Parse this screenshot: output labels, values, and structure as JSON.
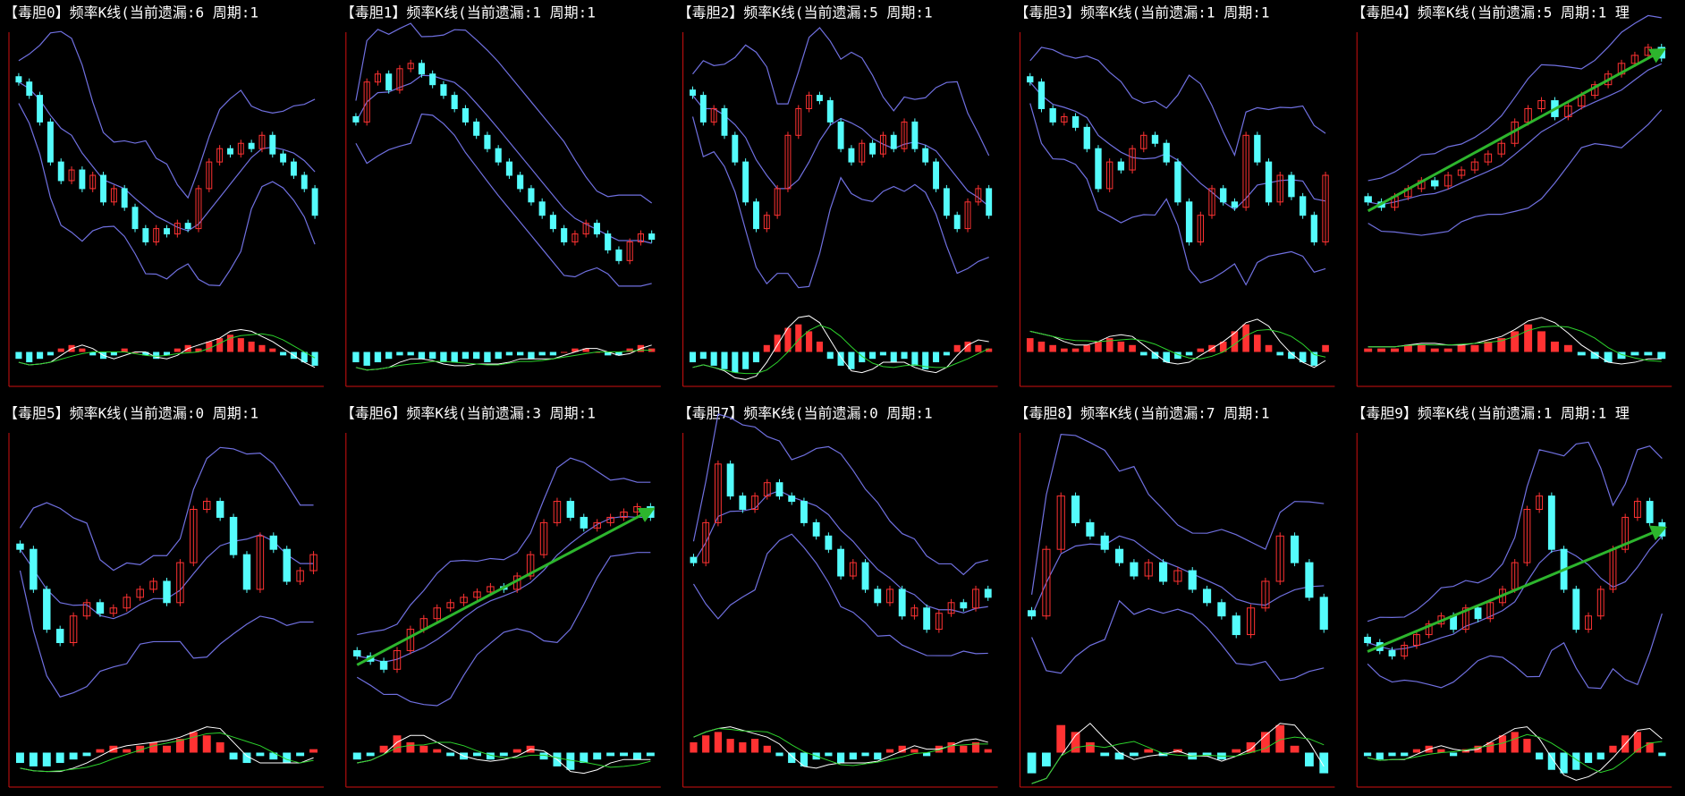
{
  "panels": [
    {
      "title": "【毒胆0】频率K线(当前遗漏:6 周期:1",
      "arrow": false,
      "price": [
        85,
        80,
        70,
        55,
        48,
        52,
        45,
        50,
        40,
        45,
        38,
        30,
        25,
        30,
        28,
        32,
        30,
        45,
        55,
        60,
        58,
        62,
        60,
        65,
        58,
        55,
        50,
        45,
        35
      ],
      "macd": [
        -2,
        -3,
        -2,
        -1,
        1,
        2,
        1,
        -1,
        -2,
        -1,
        1,
        0,
        -1,
        -2,
        -1,
        1,
        2,
        1,
        3,
        4,
        5,
        4,
        3,
        2,
        1,
        -1,
        -2,
        -3,
        -4
      ]
    },
    {
      "title": "【毒胆1】频率K线(当前遗漏:1 周期:1",
      "arrow": false,
      "price": [
        70,
        85,
        88,
        82,
        90,
        92,
        88,
        84,
        80,
        75,
        70,
        65,
        60,
        55,
        50,
        45,
        40,
        35,
        30,
        25,
        28,
        32,
        28,
        22,
        18,
        25,
        28,
        26
      ],
      "macd": [
        -3,
        -4,
        -3,
        -2,
        -1,
        -1,
        -2,
        -2,
        -3,
        -3,
        -2,
        -2,
        -3,
        -2,
        -1,
        -1,
        -2,
        -1,
        -1,
        0,
        1,
        1,
        0,
        -1,
        -1,
        1,
        2,
        1
      ]
    },
    {
      "title": "【毒胆2】频率K线(当前遗漏:5 周期:1",
      "arrow": false,
      "price": [
        80,
        70,
        75,
        65,
        55,
        40,
        30,
        35,
        45,
        65,
        75,
        80,
        78,
        70,
        60,
        55,
        62,
        58,
        65,
        60,
        70,
        60,
        55,
        45,
        35,
        30,
        40,
        45,
        35
      ],
      "macd": [
        -3,
        -2,
        -4,
        -5,
        -6,
        -5,
        -3,
        2,
        5,
        7,
        8,
        6,
        3,
        -2,
        -4,
        -5,
        -3,
        -2,
        -1,
        -3,
        -2,
        -4,
        -5,
        -3,
        -1,
        2,
        3,
        2,
        1
      ]
    },
    {
      "title": "【毒胆3】频率K线(当前遗漏:1 周期:1",
      "arrow": false,
      "price": [
        85,
        75,
        70,
        72,
        68,
        60,
        45,
        55,
        52,
        60,
        65,
        62,
        55,
        40,
        25,
        35,
        45,
        40,
        38,
        65,
        55,
        40,
        50,
        42,
        35,
        25,
        50
      ],
      "macd": [
        4,
        3,
        2,
        1,
        1,
        2,
        3,
        4,
        3,
        2,
        -1,
        -2,
        -3,
        -2,
        -1,
        1,
        2,
        3,
        6,
        8,
        5,
        2,
        -1,
        -2,
        -3,
        -4,
        2
      ]
    },
    {
      "title": "【毒胆4】频率K线(当前遗漏:5 周期:1 理",
      "arrow": true,
      "price": [
        40,
        38,
        42,
        45,
        48,
        46,
        50,
        52,
        55,
        58,
        62,
        70,
        75,
        78,
        72,
        76,
        80,
        84,
        88,
        92,
        95,
        98,
        94
      ],
      "macd": [
        1,
        1,
        1,
        2,
        2,
        1,
        1,
        2,
        2,
        3,
        4,
        6,
        8,
        6,
        3,
        2,
        -1,
        -2,
        -3,
        -2,
        -1,
        -1,
        -2
      ]
    },
    {
      "title": "【毒胆5】频率K线(当前遗漏:0 周期:1",
      "arrow": false,
      "price": [
        60,
        45,
        30,
        25,
        35,
        40,
        36,
        38,
        42,
        45,
        48,
        40,
        55,
        75,
        78,
        72,
        58,
        45,
        65,
        60,
        48,
        52,
        58
      ],
      "macd": [
        -3,
        -4,
        -4,
        -3,
        -2,
        -1,
        1,
        2,
        1,
        2,
        3,
        2,
        4,
        6,
        5,
        3,
        -2,
        -3,
        -1,
        -2,
        -3,
        -1,
        1
      ]
    },
    {
      "title": "【毒胆6】频率K线(当前遗漏:3 周期:1",
      "arrow": true,
      "price": [
        20,
        18,
        15,
        22,
        30,
        34,
        38,
        40,
        42,
        44,
        46,
        45,
        50,
        58,
        70,
        78,
        72,
        68,
        70,
        72,
        74,
        76,
        72
      ],
      "macd": [
        -2,
        -1,
        2,
        5,
        3,
        2,
        1,
        -1,
        -2,
        -1,
        -2,
        -1,
        1,
        2,
        -2,
        -4,
        -5,
        -3,
        -2,
        -1,
        -1,
        -2,
        -1
      ]
    },
    {
      "title": "【毒胆7】频率K线(当前遗漏:0 周期:1",
      "arrow": false,
      "price": [
        55,
        70,
        92,
        80,
        75,
        80,
        85,
        80,
        78,
        70,
        65,
        60,
        50,
        55,
        45,
        40,
        45,
        35,
        38,
        30,
        36,
        40,
        38,
        45,
        42
      ],
      "macd": [
        3,
        5,
        6,
        4,
        3,
        4,
        2,
        -1,
        -3,
        -4,
        -2,
        -1,
        -3,
        -2,
        -1,
        -2,
        1,
        2,
        1,
        -1,
        2,
        3,
        2,
        3,
        1
      ]
    },
    {
      "title": "【毒胆8】频率K线(当前遗漏:7 周期:1",
      "arrow": false,
      "price": [
        35,
        60,
        80,
        70,
        65,
        60,
        55,
        50,
        55,
        48,
        52,
        45,
        40,
        35,
        28,
        38,
        48,
        65,
        55,
        42,
        30
      ],
      "macd": [
        -6,
        -4,
        8,
        6,
        3,
        -1,
        -2,
        -1,
        1,
        -1,
        1,
        -2,
        -1,
        -2,
        1,
        3,
        6,
        8,
        2,
        -4,
        -6
      ]
    },
    {
      "title": "【毒胆9】频率K线(当前遗漏:1 周期:1 理",
      "arrow": true,
      "price": [
        25,
        22,
        20,
        24,
        28,
        32,
        35,
        30,
        38,
        34,
        40,
        45,
        55,
        75,
        80,
        60,
        45,
        30,
        35,
        45,
        60,
        72,
        78,
        70,
        65
      ],
      "macd": [
        -1,
        -2,
        -1,
        -1,
        1,
        2,
        1,
        -1,
        1,
        2,
        3,
        5,
        6,
        4,
        -2,
        -5,
        -6,
        -5,
        -3,
        -2,
        2,
        5,
        6,
        3,
        -1
      ]
    }
  ]
}
